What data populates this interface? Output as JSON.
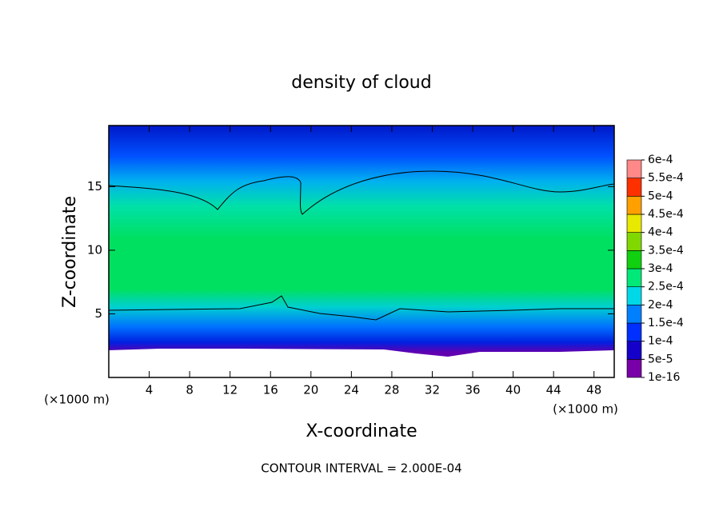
{
  "chart_data": {
    "type": "contour",
    "title": "density of cloud",
    "x_label": "X-coordinate",
    "y_label": "Z-coordinate",
    "x_unit": "(×1000 m)",
    "y_unit": "(×1000 m)",
    "footer": "CONTOUR INTERVAL = 2.000E-04",
    "xlim": [
      0,
      50
    ],
    "xticks": [
      4,
      8,
      12,
      16,
      20,
      24,
      28,
      32,
      36,
      40,
      44,
      48
    ],
    "ylim": [
      0,
      19.8
    ],
    "yticks": [
      5,
      10,
      15
    ],
    "colorbar_ticks": [
      {
        "value": 1e-16,
        "label": "1e-16"
      },
      {
        "value": 5e-05,
        "label": "5e-5"
      },
      {
        "value": 0.0001,
        "label": "1e-4"
      },
      {
        "value": 0.00015,
        "label": "1.5e-4"
      },
      {
        "value": 0.0002,
        "label": "2e-4"
      },
      {
        "value": 0.00025,
        "label": "2.5e-4"
      },
      {
        "value": 0.0003,
        "label": "3e-4"
      },
      {
        "value": 0.00035,
        "label": "3.5e-4"
      },
      {
        "value": 0.0004,
        "label": "4e-4"
      },
      {
        "value": 0.00045,
        "label": "4.5e-4"
      },
      {
        "value": 0.0005,
        "label": "5e-4"
      },
      {
        "value": 0.00055,
        "label": "5.5e-4"
      },
      {
        "value": 0.0006,
        "label": "6e-4"
      }
    ],
    "colorbar_colors": [
      "#7800a8",
      "#1400c8",
      "#0030ff",
      "#0080ff",
      "#00d8e8",
      "#00e878",
      "#10d010",
      "#80d800",
      "#e8e800",
      "#ffa000",
      "#ff3000",
      "#ff8888"
    ]
  }
}
